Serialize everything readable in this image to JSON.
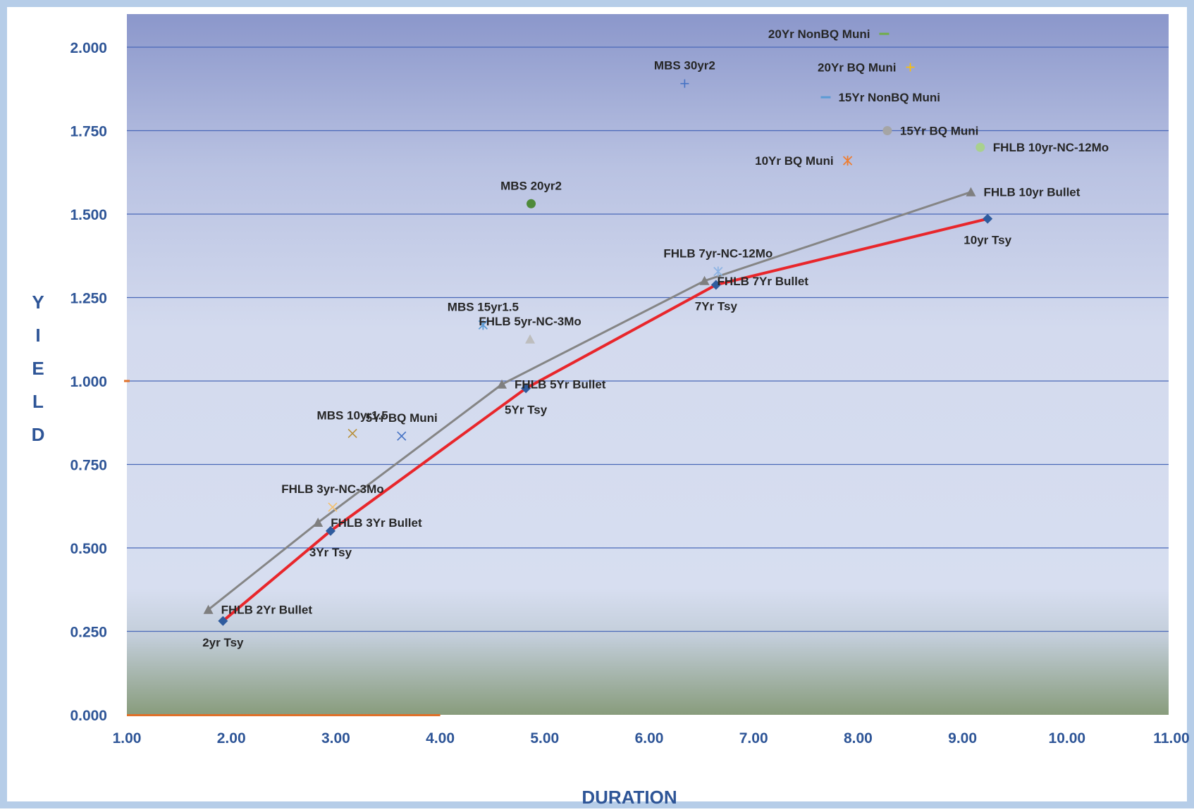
{
  "chart_data": {
    "type": "scatter",
    "title": "",
    "xlabel": "DURATION",
    "ylabel_letters": [
      "Y",
      "I",
      "E",
      "L",
      "D"
    ],
    "xlim": [
      1.0,
      11.0
    ],
    "ylim": [
      0.0,
      2.15
    ],
    "x_ticks": [
      1,
      2,
      3,
      4,
      5,
      6,
      7,
      8,
      9,
      10,
      11
    ],
    "x_tick_labels": [
      "1.00",
      "2.00",
      "3.00",
      "4.00",
      "5.00",
      "6.00",
      "7.00",
      "8.00",
      "9.00",
      "10.00",
      "11.00"
    ],
    "y_ticks": [
      0,
      0.25,
      0.5,
      0.75,
      1.0,
      1.25,
      1.5,
      1.75,
      2.0
    ],
    "y_tick_labels": [
      "0.000",
      "0.250",
      "0.500",
      "0.750",
      "1.000",
      "1.250",
      "1.500",
      "1.750",
      "2.000"
    ],
    "grid": true,
    "legend": "none",
    "colors": {
      "plot_top": "#8B97CB",
      "plot_mid": "#D4DBEE",
      "plot_bottom": "#889C7C",
      "grid": "#4A68B8",
      "frame": "#B6CDE8",
      "tsy_line": "#E8262B",
      "fhlb_line": "#858585",
      "tick_text": "#2E5597"
    },
    "series": [
      {
        "kind": "line",
        "color": "#E8262B",
        "marker": "diamond",
        "marker_color": "#2F5C9E",
        "points": [
          {
            "x": 1.92,
            "y": 0.281,
            "label": "2yr Tsy"
          },
          {
            "x": 2.95,
            "y": 0.551,
            "label": "3Yr Tsy"
          },
          {
            "x": 4.82,
            "y": 0.978,
            "label": "5Yr Tsy"
          },
          {
            "x": 6.64,
            "y": 1.288,
            "label": "7Yr Tsy"
          },
          {
            "x": 9.24,
            "y": 1.486,
            "label": "10yr Tsy"
          }
        ]
      },
      {
        "kind": "line",
        "color": "#858585",
        "marker": "triangle",
        "marker_color": "#7F7F7F",
        "points": [
          {
            "x": 1.78,
            "y": 0.315,
            "label": "FHLB 2Yr Bullet"
          },
          {
            "x": 2.83,
            "y": 0.576,
            "label": "FHLB 3Yr Bullet"
          },
          {
            "x": 4.59,
            "y": 0.99,
            "label": "FHLB 5Yr Bullet"
          },
          {
            "x": 6.53,
            "y": 1.3,
            "label": "FHLB 7Yr Bullet"
          },
          {
            "x": 9.08,
            "y": 1.566,
            "label": "FHLB 10yr Bullet"
          }
        ]
      }
    ],
    "points": [
      {
        "x": 3.16,
        "y": 0.843,
        "label": "MBS 10yr1.5",
        "marker": "x",
        "color": "#B8903A"
      },
      {
        "x": 3.63,
        "y": 0.835,
        "label": "5Yr BQ Muni",
        "marker": "x",
        "color": "#4472C4"
      },
      {
        "x": 2.97,
        "y": 0.622,
        "label": "FHLB 3yr-NC-3Mo",
        "marker": "x",
        "color": "#F5C06B"
      },
      {
        "x": 4.41,
        "y": 1.168,
        "label": "MBS 15yr1.5",
        "marker": "asterisk",
        "color": "#5B9BD5"
      },
      {
        "x": 4.86,
        "y": 1.125,
        "label": "FHLB 5yr-NC-3Mo",
        "marker": "triangle",
        "color": "#BDBDBD"
      },
      {
        "x": 4.87,
        "y": 1.531,
        "label": "MBS 20yr2",
        "marker": "circle",
        "color": "#4E8A3A"
      },
      {
        "x": 6.66,
        "y": 1.328,
        "label": "FHLB 7yr-NC-12Mo",
        "marker": "asterisk",
        "color": "#8EB4E3"
      },
      {
        "x": 6.34,
        "y": 1.891,
        "label": "MBS 30yr2",
        "marker": "plus",
        "color": "#4472C4"
      },
      {
        "x": 7.9,
        "y": 1.66,
        "label": "10Yr BQ Muni",
        "marker": "asterisk",
        "color": "#ED7D31"
      },
      {
        "x": 8.28,
        "y": 1.75,
        "label": "15Yr BQ Muni",
        "marker": "circle",
        "color": "#A5A5A5"
      },
      {
        "x": 7.69,
        "y": 1.85,
        "label": "15Yr NonBQ Muni",
        "marker": "dash",
        "color": "#5B9BD5"
      },
      {
        "x": 8.5,
        "y": 1.94,
        "label": "20Yr BQ Muni",
        "marker": "plus",
        "color": "#FFC000"
      },
      {
        "x": 8.25,
        "y": 2.04,
        "label": "20Yr NonBQ Muni",
        "marker": "dash",
        "color": "#70AD47"
      },
      {
        "x": 9.17,
        "y": 1.7,
        "label": "FHLB 10yr-NC-12Mo",
        "marker": "circle",
        "color": "#A9D18E"
      }
    ]
  }
}
